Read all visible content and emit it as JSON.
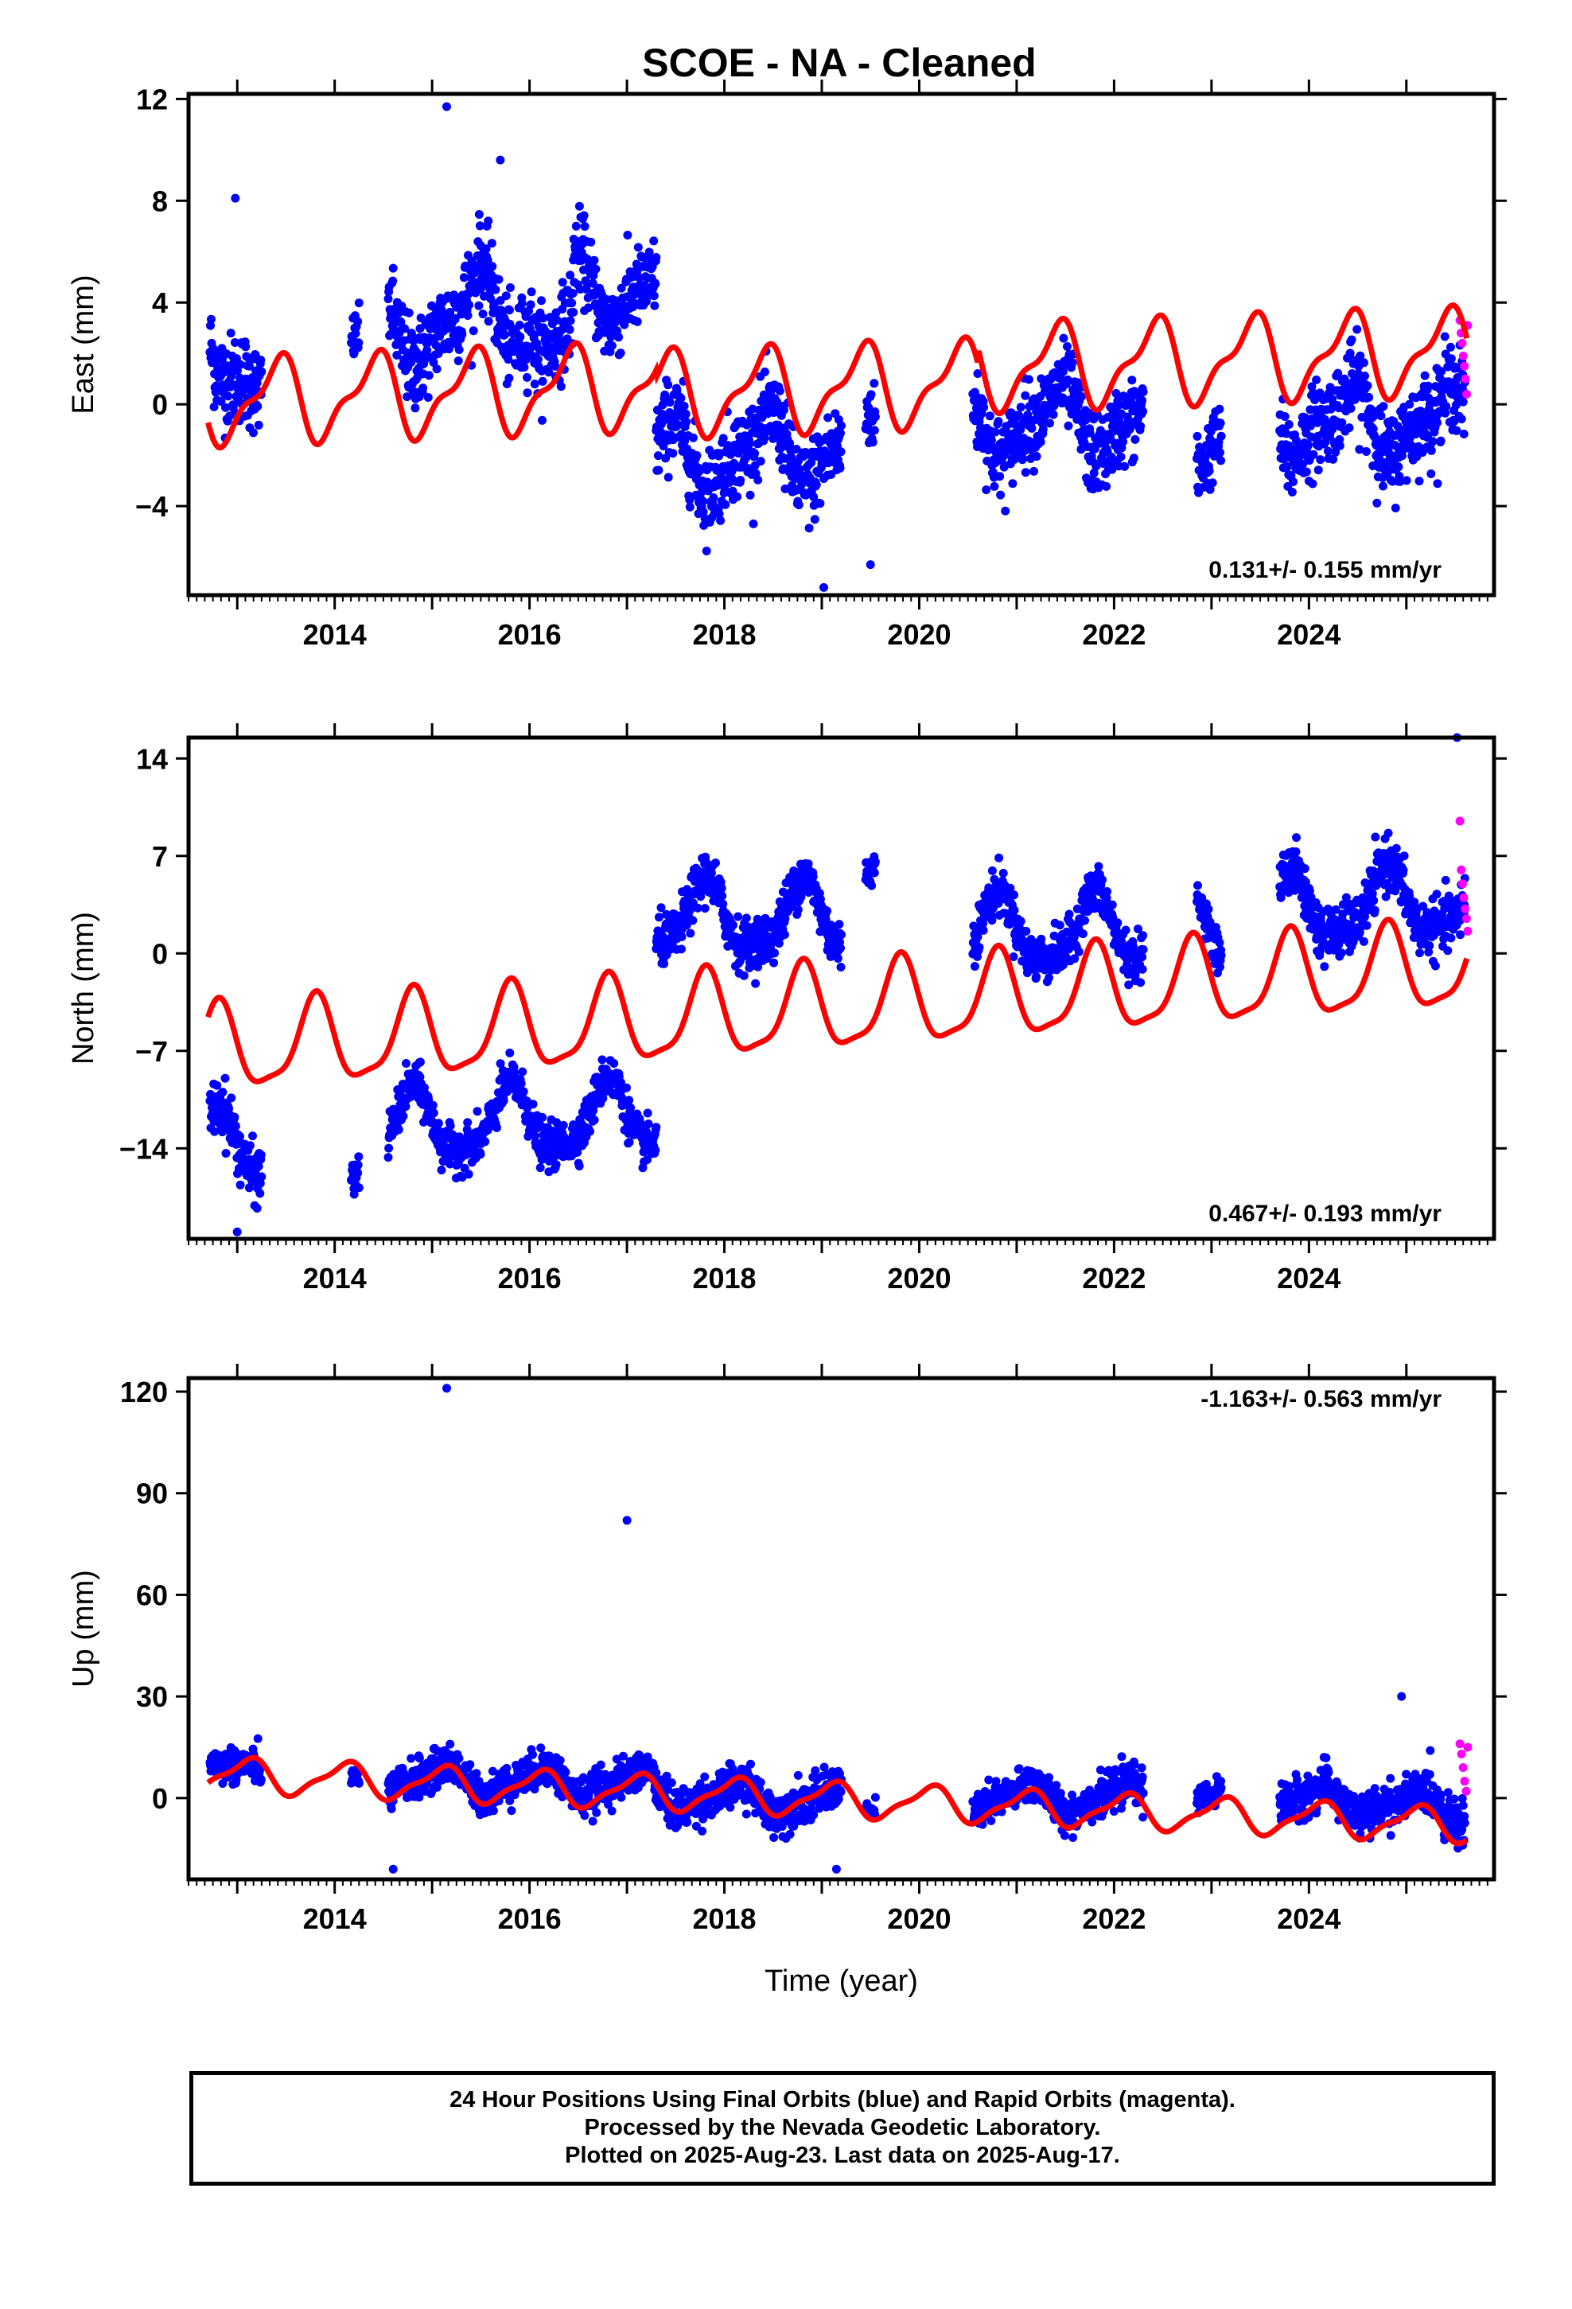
{
  "title": "SCOE  - NA - Cleaned",
  "colors": {
    "final": "#0000ff",
    "rapid": "#ff00ff",
    "model": "#ff0000",
    "frame": "#000000"
  },
  "footer": {
    "line1": "24 Hour Positions Using Final Orbits (blue) and Rapid Orbits (magenta).",
    "line2": "Processed by the Nevada Geodetic Laboratory.",
    "line3": "Plotted on 2025-Aug-23. Last data on 2025-Aug-17."
  },
  "chart_data": [
    {
      "type": "scatter",
      "id": "east",
      "title": "SCOE  - NA - Cleaned",
      "ylabel": "East (mm)",
      "xlabel": "",
      "xlim": [
        2012.5,
        2025.9
      ],
      "ylim": [
        -7.5,
        12.2
      ],
      "xticks": [
        2014,
        2016,
        2018,
        2020,
        2022,
        2024
      ],
      "xtick_labels": [
        "2014",
        "2016",
        "2018",
        "2020",
        "2022",
        "2024"
      ],
      "yticks": [
        12,
        8,
        4,
        0,
        -4
      ],
      "ytick_labels": [
        "12",
        "8",
        "4",
        "0",
        "−4"
      ],
      "rate_text": "0.131+/- 0.155 mm/yr",
      "rate_position": "bottom-right",
      "grid": false,
      "segments": [
        {
          "start": 2012.72,
          "end": 2013.25,
          "mean": 3.2,
          "trend": -3.0,
          "spread": 1.6
        },
        {
          "start": 2014.17,
          "end": 2014.25,
          "mean": 2.5,
          "trend": 0,
          "spread": 0.9
        },
        {
          "start": 2014.55,
          "end": 2015.45,
          "mean": 2.8,
          "trend": 0.6,
          "spread": 1.6
        },
        {
          "start": 2015.45,
          "end": 2016.05,
          "mean": 4.2,
          "trend": -0.8,
          "spread": 1.5
        },
        {
          "start": 2016.05,
          "end": 2016.45,
          "mean": 2.2,
          "trend": 0,
          "spread": 1.5
        },
        {
          "start": 2016.45,
          "end": 2017.3,
          "mean": 4.6,
          "trend": 0,
          "spread": 1.4
        },
        {
          "start": 2017.3,
          "end": 2019.2,
          "mean": -1.8,
          "trend": 0.3,
          "spread": 1.5
        },
        {
          "start": 2019.45,
          "end": 2019.55,
          "mean": -1.6,
          "trend": 0,
          "spread": 1.2
        },
        {
          "start": 2020.55,
          "end": 2022.3,
          "mean": -0.9,
          "trend": 0,
          "spread": 1.4
        },
        {
          "start": 2022.85,
          "end": 2023.1,
          "mean": -1.5,
          "trend": 0,
          "spread": 1.2
        },
        {
          "start": 2023.7,
          "end": 2025.6,
          "mean": -0.9,
          "trend": 0,
          "spread": 1.5
        }
      ],
      "outliers": [
        {
          "x": 2015.15,
          "y": 11.7
        },
        {
          "x": 2019.02,
          "y": -7.2
        },
        {
          "x": 2019.5,
          "y": -6.3
        },
        {
          "x": 2012.98,
          "y": 8.1
        },
        {
          "x": 2015.7,
          "y": 9.6
        }
      ],
      "rapid": {
        "start": 2025.55,
        "end": 2025.63,
        "values": [
          3.3,
          2.8,
          2.4,
          1.9,
          1.5,
          1.0,
          0.4,
          3.1
        ]
      },
      "model": {
        "intercept_year": 2012.7,
        "intercept": 0.1,
        "rate": 0.131,
        "amp1": 1.5,
        "phase1": 0.15,
        "amp2": 0.6,
        "phase2": 0.4,
        "offsets": [
          {
            "year": 2017.3,
            "value": -0.3
          },
          {
            "year": 2020.6,
            "value": 0.6
          }
        ]
      }
    },
    {
      "type": "scatter",
      "id": "north",
      "ylabel": "North (mm)",
      "xlabel": "",
      "xlim": [
        2012.5,
        2025.9
      ],
      "ylim": [
        -20.5,
        15.5
      ],
      "xticks": [
        2014,
        2016,
        2018,
        2020,
        2022,
        2024
      ],
      "xtick_labels": [
        "2014",
        "2016",
        "2018",
        "2020",
        "2022",
        "2024"
      ],
      "yticks": [
        14,
        7,
        0,
        -7,
        -14
      ],
      "ytick_labels": [
        "14",
        "7",
        "0",
        "−7",
        "−14"
      ],
      "rate_text": "0.467+/- 0.193 mm/yr",
      "rate_position": "bottom-right",
      "grid": false,
      "segments": [
        {
          "start": 2012.72,
          "end": 2013.25,
          "mean": -14.0,
          "trend": 0,
          "spread": 1.8
        },
        {
          "start": 2014.17,
          "end": 2014.25,
          "mean": -14.0,
          "trend": 0,
          "spread": 1.2
        },
        {
          "start": 2014.55,
          "end": 2017.3,
          "mean": -12.5,
          "trend": 0.8,
          "spread": 1.4
        },
        {
          "start": 2017.3,
          "end": 2019.2,
          "mean": 2.5,
          "trend": 0,
          "spread": 1.6
        },
        {
          "start": 2019.45,
          "end": 2019.55,
          "mean": 7.0,
          "trend": 0,
          "spread": 1.0
        },
        {
          "start": 2020.55,
          "end": 2022.3,
          "mean": 1.5,
          "trend": 0,
          "spread": 1.5
        },
        {
          "start": 2022.85,
          "end": 2023.1,
          "mean": 1.0,
          "trend": 0,
          "spread": 1.2
        },
        {
          "start": 2023.7,
          "end": 2025.6,
          "mean": 3.0,
          "trend": 0.8,
          "spread": 1.7
        }
      ],
      "outliers": [
        {
          "x": 2025.52,
          "y": 15.5
        },
        {
          "x": 2013.0,
          "y": -20.0
        },
        {
          "x": 2014.2,
          "y": -17.3
        }
      ],
      "rapid": {
        "start": 2025.55,
        "end": 2025.63,
        "values": [
          9.5,
          6.0,
          5.0,
          4.0,
          3.2,
          2.5,
          1.6
        ]
      },
      "model": {
        "intercept_year": 2012.7,
        "intercept": -7.0,
        "rate": 0.467,
        "amp1": 3.0,
        "phase1": 0.55,
        "amp2": 0.8,
        "phase2": 0.2,
        "offsets": [
          {
            "year": 2017.3,
            "value": 0.0
          }
        ]
      }
    },
    {
      "type": "scatter",
      "id": "up",
      "ylabel": "Up (mm)",
      "xlabel": "Time (year)",
      "xlim": [
        2012.5,
        2025.9
      ],
      "ylim": [
        -24,
        124
      ],
      "xticks": [
        2014,
        2016,
        2018,
        2020,
        2022,
        2024
      ],
      "xtick_labels": [
        "2014",
        "2016",
        "2018",
        "2020",
        "2022",
        "2024"
      ],
      "yticks": [
        120,
        90,
        60,
        30,
        0
      ],
      "ytick_labels": [
        "120",
        "90",
        "60",
        "30",
        "0"
      ],
      "rate_text": "-1.163+/- 0.563 mm/yr",
      "rate_position": "top-right",
      "grid": false,
      "segments": [
        {
          "start": 2012.72,
          "end": 2013.25,
          "mean": 12.0,
          "trend": -8.0,
          "spread": 4.5
        },
        {
          "start": 2014.17,
          "end": 2014.25,
          "mean": 2.0,
          "trend": 0,
          "spread": 2.0
        },
        {
          "start": 2014.55,
          "end": 2017.3,
          "mean": 6.0,
          "trend": -2.0,
          "spread": 5.0
        },
        {
          "start": 2017.3,
          "end": 2019.2,
          "mean": 1.0,
          "trend": -2.0,
          "spread": 5.5
        },
        {
          "start": 2019.45,
          "end": 2019.55,
          "mean": 0.0,
          "trend": 0,
          "spread": 2.5
        },
        {
          "start": 2020.55,
          "end": 2022.3,
          "mean": 0.0,
          "trend": 0,
          "spread": 5.0
        },
        {
          "start": 2022.85,
          "end": 2023.1,
          "mean": -1.0,
          "trend": 0,
          "spread": 3.5
        },
        {
          "start": 2023.7,
          "end": 2025.6,
          "mean": 0.0,
          "trend": -3.0,
          "spread": 5.5
        }
      ],
      "outliers": [
        {
          "x": 2015.15,
          "y": 121
        },
        {
          "x": 2017.0,
          "y": 82
        },
        {
          "x": 2024.95,
          "y": 30
        },
        {
          "x": 2014.6,
          "y": -21
        },
        {
          "x": 2019.15,
          "y": -21
        }
      ],
      "rapid": {
        "start": 2025.55,
        "end": 2025.63,
        "values": [
          16,
          13,
          9,
          5,
          2,
          15
        ]
      },
      "model": {
        "intercept_year": 2012.7,
        "intercept": 7.0,
        "rate": -1.163,
        "amp1": 4.8,
        "phase1": 0.85,
        "amp2": 1.5,
        "phase2": 0.6,
        "offsets": []
      }
    }
  ]
}
